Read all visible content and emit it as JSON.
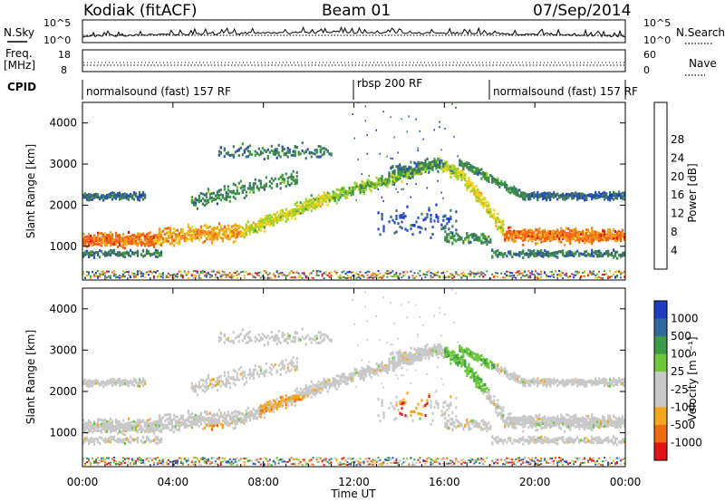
{
  "header": {
    "station": "Kodiak (fitACF)",
    "beam": "Beam 01",
    "date": "07/Sep/2014"
  },
  "top_panels": {
    "nsky_label": "N.Sky",
    "nsky_ticks": [
      "10^5",
      "10^0"
    ],
    "nsearch_label": "N.Search",
    "nsearch_ticks": [
      "10^5",
      "10^0"
    ],
    "freq_label_1": "Freq.",
    "freq_label_2": "[MHz]",
    "freq_ticks": [
      "18",
      "8"
    ],
    "nave_label": "Nave",
    "nave_ticks": [
      "60",
      "0"
    ],
    "cpid_label": "CPID",
    "cpid_segments": [
      {
        "label": "normalsound (fast) 157 RF",
        "start_h": 0
      },
      {
        "label": "rbsp 200 RF",
        "start_h": 12
      },
      {
        "label": "normalsound (fast) 157 RF",
        "start_h": 18
      }
    ]
  },
  "chart_data": [
    {
      "type": "heatmap",
      "name": "power",
      "ylabel": "Slant Range [km]",
      "xlabel": "Time UT",
      "x_ticks": [
        "00:00",
        "04:00",
        "08:00",
        "12:00",
        "16:00",
        "20:00",
        "00:00"
      ],
      "xlim_hours": [
        0,
        24
      ],
      "y_ticks": [
        1000,
        2000,
        3000,
        4000
      ],
      "ylim": [
        180,
        4500
      ],
      "colorbar": {
        "label": "Power [dB]",
        "ticks": [
          4,
          8,
          12,
          16,
          20,
          24,
          28
        ]
      },
      "colors": [
        "#1a2fd8",
        "#2b50b0",
        "#3c7a5a",
        "#3b9a3b",
        "#9ccf2a",
        "#ecd218",
        "#f2a01c",
        "#ee6414",
        "#e01616"
      ]
    },
    {
      "type": "heatmap",
      "name": "velocity",
      "ylabel": "Slant Range [km]",
      "xlabel": "Time UT",
      "x_ticks": [
        "00:00",
        "04:00",
        "08:00",
        "12:00",
        "16:00",
        "20:00",
        "00:00"
      ],
      "xlim_hours": [
        0,
        24
      ],
      "y_ticks": [
        1000,
        2000,
        3000,
        4000
      ],
      "ylim": [
        180,
        4500
      ],
      "colorbar": {
        "label": "Velocity [m s⁻¹]",
        "ticks": [
          1000,
          500,
          100,
          25,
          -25,
          -100,
          -500,
          -1000
        ]
      },
      "colors": [
        "#1e3cc0",
        "#2e6aa0",
        "#3d9a48",
        "#6cc83a",
        "#c8c8c8",
        "#c8c8c8",
        "#f4a61e",
        "#ee6a14",
        "#e01414"
      ]
    }
  ],
  "axis": {
    "x_label": "Time UT"
  }
}
